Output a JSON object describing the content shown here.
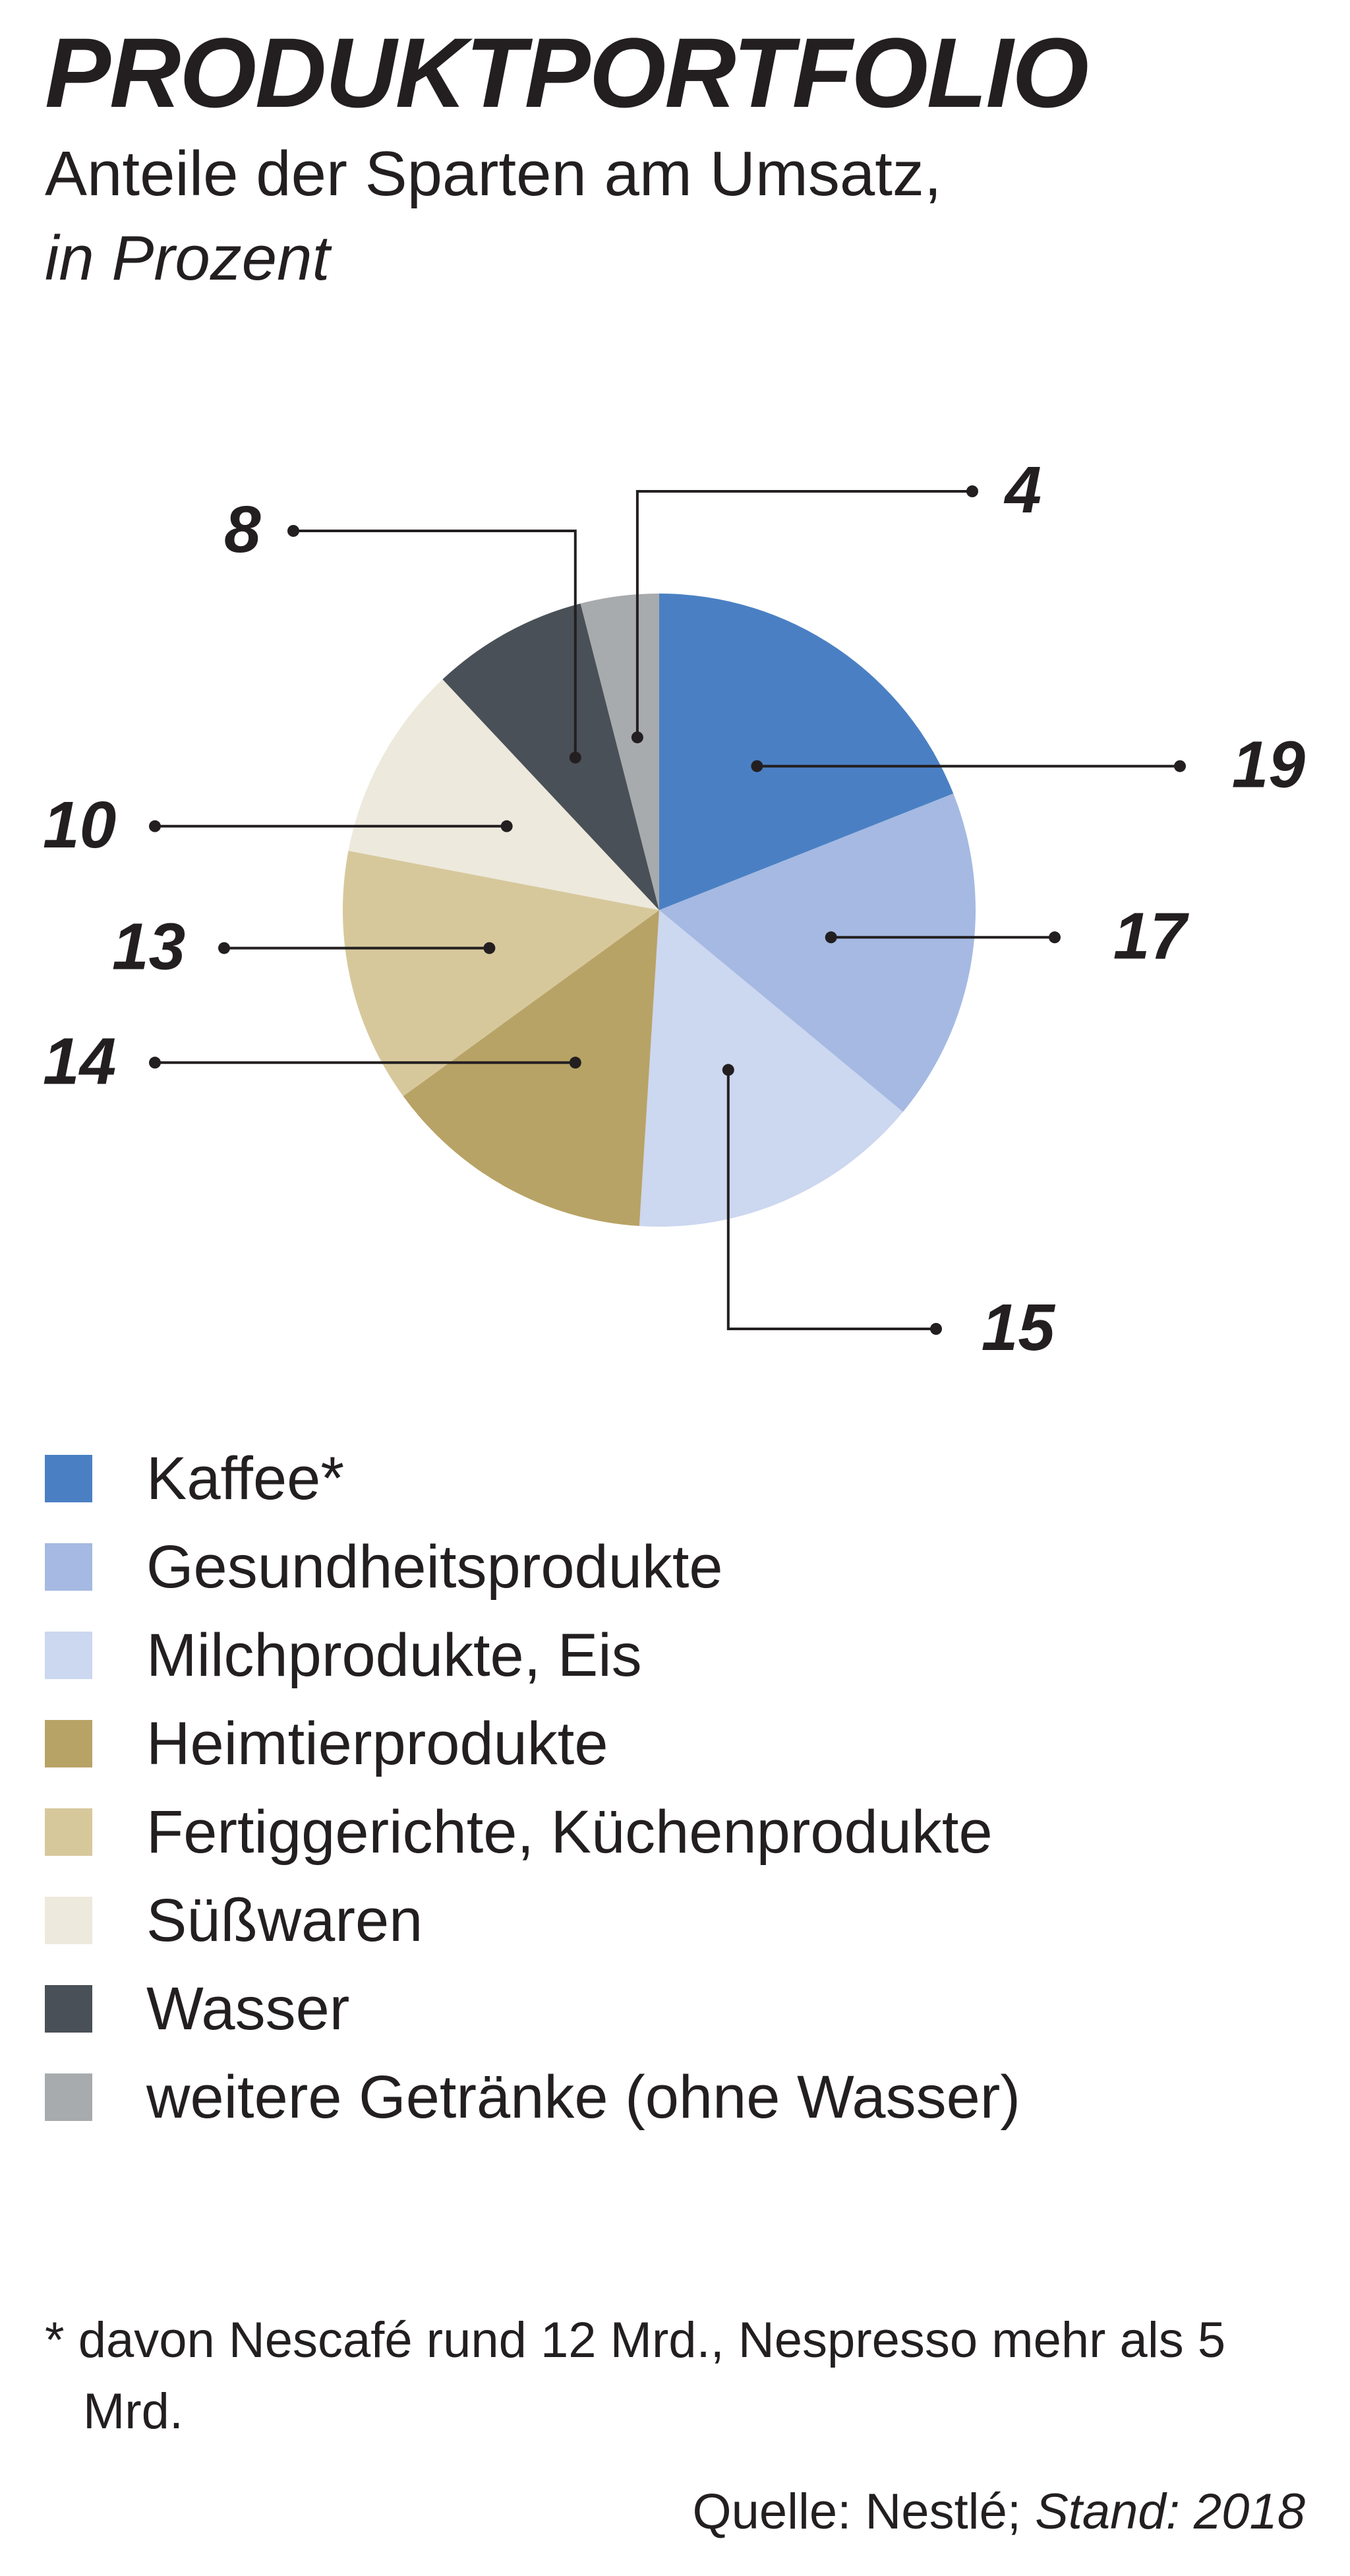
{
  "title": "PRODUKTPORTFOLIO",
  "subtitle": "Anteile der Sparten am Umsatz,",
  "unit": "in Prozent",
  "chart_data": {
    "type": "pie",
    "title": "PRODUKTPORTFOLIO",
    "subtitle": "Anteile der Sparten am Umsatz, in Prozent",
    "start": "12 o'clock",
    "direction": "clockwise",
    "legend_position": "bottom",
    "slices": [
      {
        "name": "Kaffee*",
        "value": 19,
        "label": "19",
        "color": "#4a80c3"
      },
      {
        "name": "Gesundheitsprodukte",
        "value": 17,
        "label": "17",
        "color": "#a5b9e2"
      },
      {
        "name": "Milchprodukte, Eis",
        "value": 15,
        "label": "15",
        "color": "#ccd7f0"
      },
      {
        "name": "Heimtierprodukte",
        "value": 14,
        "label": "14",
        "color": "#b8a366"
      },
      {
        "name": "Fertiggerichte, Küchenprodukte",
        "value": 13,
        "label": "13",
        "color": "#d7c89c"
      },
      {
        "name": "Süßwaren",
        "value": 10,
        "label": "10",
        "color": "#ede9dc"
      },
      {
        "name": "Wasser",
        "value": 8,
        "label": "8",
        "color": "#4a5057"
      },
      {
        "name": "weitere Getränke (ohne Wasser)",
        "value": 4,
        "label": "4",
        "color": "#a7abae"
      }
    ]
  },
  "legend": [
    {
      "label": "Kaffee*",
      "color": "#4a80c3"
    },
    {
      "label": "Gesundheitsprodukte",
      "color": "#a5b9e2"
    },
    {
      "label": "Milchprodukte, Eis",
      "color": "#ccd7f0"
    },
    {
      "label": "Heimtierprodukte",
      "color": "#b8a366"
    },
    {
      "label": "Fertiggerichte, Küchenprodukte",
      "color": "#d7c89c"
    },
    {
      "label": "Süßwaren",
      "color": "#ede9dc"
    },
    {
      "label": "Wasser",
      "color": "#4a5057"
    },
    {
      "label": "weitere Getränke (ohne Wasser)",
      "color": "#a7abae"
    }
  ],
  "footnote": "* davon Nescafé rund 12 Mrd., Nespresso mehr als 5 Mrd.",
  "source": {
    "prefix": "Quelle: Nestlé;",
    "stand": "Stand: 2018"
  },
  "colors": {
    "text": "#231f20",
    "leader_line": "#231f20",
    "background": "#ffffff"
  }
}
